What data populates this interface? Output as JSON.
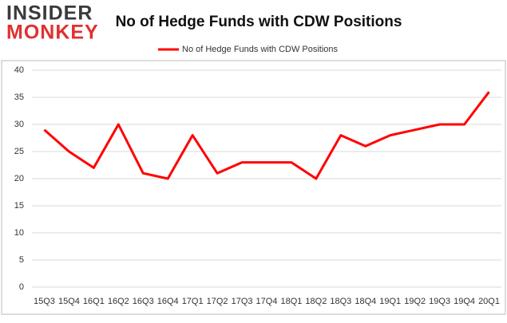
{
  "logo": {
    "line1": "INSIDER",
    "line2": "MONKEY"
  },
  "chart_data": {
    "type": "line",
    "title": "No of Hedge Funds with CDW Positions",
    "categories": [
      "15Q3",
      "15Q4",
      "16Q1",
      "16Q2",
      "16Q3",
      "16Q4",
      "17Q1",
      "17Q2",
      "17Q3",
      "17Q4",
      "18Q1",
      "18Q2",
      "18Q3",
      "18Q4",
      "19Q1",
      "19Q2",
      "19Q3",
      "19Q4",
      "20Q1"
    ],
    "series": [
      {
        "name": "No of Hedge Funds with CDW Positions",
        "color": "#ff0000",
        "values": [
          29,
          25,
          22,
          30,
          21,
          20,
          28,
          21,
          23,
          23,
          23,
          20,
          28,
          26,
          28,
          29,
          30,
          30,
          36
        ]
      }
    ],
    "ylim": [
      0,
      40
    ],
    "yticks": [
      0,
      5,
      10,
      15,
      20,
      25,
      30,
      35,
      40
    ],
    "grid": true,
    "legend": "top"
  }
}
